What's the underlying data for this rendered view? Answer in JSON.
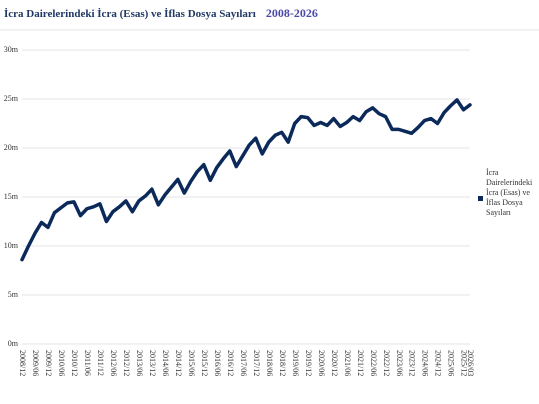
{
  "chart_data": {
    "type": "line",
    "title": "İcra Dairelerindeki İcra (Esas) ve İflas Dosya Sayıları",
    "subtitle": "2008-2026",
    "categories": [
      "2008/12",
      null,
      "2009/06",
      null,
      "2009/12",
      null,
      "2010/06",
      null,
      "2010/12",
      null,
      "2011/06",
      null,
      "2011/12",
      null,
      "2012/06",
      null,
      "2012/12",
      null,
      "2013/06",
      null,
      "2013/12",
      null,
      "2014/06",
      null,
      "2014/12",
      null,
      "2015/06",
      null,
      "2015/12",
      null,
      "2016/06",
      null,
      "2016/12",
      null,
      "2017/06",
      null,
      "2017/12",
      null,
      "2018/06",
      null,
      "2018/12",
      null,
      "2019/06",
      null,
      "2019/12",
      null,
      "2020/06",
      null,
      "2020/12",
      null,
      "2021/06",
      null,
      "2021/12",
      null,
      "2022/06",
      null,
      "2022/12",
      null,
      "2023/06",
      null,
      "2023/12",
      null,
      "2024/06",
      null,
      "2024/12",
      null,
      "2025/06",
      null,
      "2025/12",
      "2026/03"
    ],
    "series": [
      {
        "name": "İcra Dairelerindeki İcra (Esas) ve İflas Dosya Sayıları",
        "color": "#0b2a5a",
        "values": [
          8.6,
          10.0,
          11.3,
          12.4,
          11.9,
          13.4,
          13.9,
          14.4,
          14.5,
          13.1,
          13.8,
          14.0,
          14.3,
          12.5,
          13.5,
          14.0,
          14.6,
          13.5,
          14.6,
          15.1,
          15.8,
          14.2,
          15.2,
          16.0,
          16.8,
          15.4,
          16.6,
          17.6,
          18.3,
          16.7,
          18.0,
          18.9,
          19.7,
          18.1,
          19.2,
          20.3,
          21.0,
          19.4,
          20.6,
          21.3,
          21.6,
          20.6,
          22.5,
          23.2,
          23.1,
          22.3,
          22.6,
          22.3,
          23.0,
          22.2,
          22.6,
          23.2,
          22.8,
          23.7,
          24.1,
          23.5,
          23.2,
          21.9,
          21.9,
          21.7,
          21.5,
          22.1,
          22.8,
          23.0,
          22.5,
          23.6,
          24.3,
          24.9,
          23.9,
          24.4
        ]
      }
    ],
    "ylim": [
      0,
      30
    ],
    "yticks": [
      {
        "value": 0,
        "label": "0m"
      },
      {
        "value": 5,
        "label": "5m"
      },
      {
        "value": 10,
        "label": "10m"
      },
      {
        "value": 15,
        "label": "15m"
      },
      {
        "value": 20,
        "label": "20m"
      },
      {
        "value": 25,
        "label": "25m"
      },
      {
        "value": 30,
        "label": "30m"
      }
    ],
    "grid": true,
    "legend": "right"
  }
}
